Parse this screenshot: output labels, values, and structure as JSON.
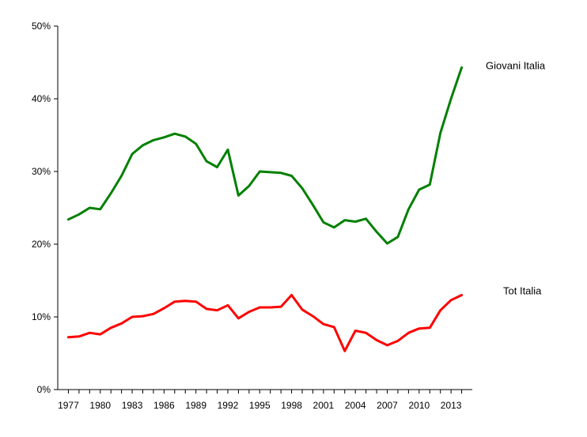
{
  "chart_data": {
    "type": "line",
    "x": [
      1977,
      1978,
      1979,
      1980,
      1981,
      1982,
      1983,
      1984,
      1985,
      1986,
      1987,
      1988,
      1989,
      1990,
      1991,
      1992,
      1993,
      1994,
      1995,
      1996,
      1997,
      1998,
      1999,
      2000,
      2001,
      2002,
      2003,
      2004,
      2005,
      2006,
      2007,
      2008,
      2009,
      2010,
      2011,
      2012,
      2013,
      2014
    ],
    "x_ticks": [
      1977,
      1980,
      1983,
      1986,
      1989,
      1992,
      1995,
      1998,
      2001,
      2004,
      2007,
      2010,
      2013
    ],
    "y_ticks": [
      0,
      10,
      20,
      30,
      40,
      50
    ],
    "y_tick_labels": [
      "0%",
      "10%",
      "20%",
      "30%",
      "40%",
      "50%"
    ],
    "ylim": [
      0,
      50
    ],
    "xlabel": "",
    "ylabel": "",
    "title": "",
    "grid": false,
    "series": [
      {
        "name": "Giovani Italia",
        "color": "#008000",
        "values": [
          23.4,
          24.1,
          25.0,
          24.8,
          27.0,
          29.4,
          32.4,
          33.6,
          34.3,
          34.7,
          35.2,
          34.8,
          33.8,
          31.4,
          30.6,
          33.0,
          26.7,
          28.0,
          30.0,
          29.9,
          29.8,
          29.4,
          27.7,
          25.4,
          23.0,
          22.3,
          23.3,
          23.1,
          23.5,
          21.7,
          20.1,
          21.0,
          24.8,
          27.5,
          28.2,
          35.3,
          40.0,
          44.3
        ]
      },
      {
        "name": "Tot Italia",
        "color": "#ff0000",
        "values": [
          7.2,
          7.3,
          7.8,
          7.6,
          8.5,
          9.1,
          10.0,
          10.1,
          10.4,
          11.2,
          12.1,
          12.2,
          12.1,
          11.1,
          10.9,
          11.6,
          9.8,
          10.7,
          11.3,
          11.3,
          11.4,
          13.0,
          11.0,
          10.1,
          9.0,
          8.6,
          5.3,
          8.1,
          7.8,
          6.8,
          6.1,
          6.7,
          7.8,
          8.4,
          8.5,
          10.9,
          12.3,
          13.0
        ]
      }
    ]
  }
}
